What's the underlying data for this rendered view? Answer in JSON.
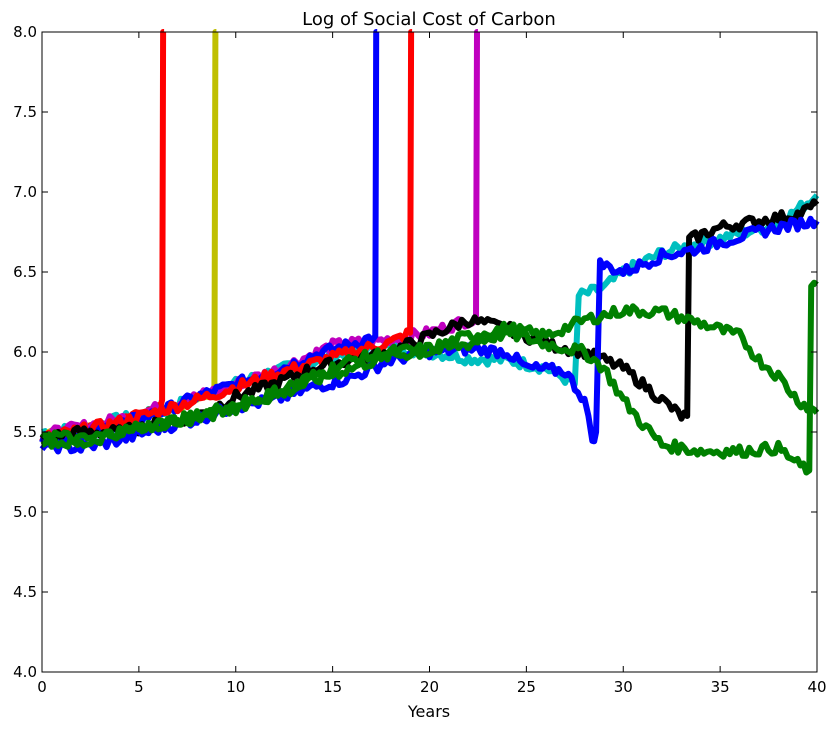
{
  "chart_data": {
    "type": "line",
    "title": "Log of Social Cost of Carbon",
    "xlabel": "Years",
    "ylabel": "",
    "xlim": [
      0,
      40
    ],
    "ylim": [
      4.0,
      8.0
    ],
    "xticks": [
      0,
      5,
      10,
      15,
      20,
      25,
      30,
      35,
      40
    ],
    "xtick_labels": [
      "0",
      "5",
      "10",
      "15",
      "20",
      "25",
      "30",
      "35",
      "40"
    ],
    "yticks": [
      4.0,
      4.5,
      5.0,
      5.5,
      6.0,
      6.5,
      7.0,
      7.5,
      8.0
    ],
    "ytick_labels": [
      "4.0",
      "4.5",
      "5.0",
      "5.5",
      "6.0",
      "6.5",
      "7.0",
      "7.5",
      "8.0"
    ],
    "grid": false,
    "series": [
      {
        "name": "cyan path",
        "color": "#00bfbf",
        "x": [
          0,
          2,
          4,
          6,
          8,
          10,
          12,
          14,
          16,
          18,
          20,
          22,
          24,
          26,
          27.5,
          27.7,
          29,
          30,
          32,
          34,
          36,
          38,
          40
        ],
        "y": [
          5.5,
          5.52,
          5.58,
          5.62,
          5.72,
          5.8,
          5.88,
          5.94,
          6.0,
          6.03,
          6.0,
          5.96,
          5.95,
          5.9,
          5.8,
          6.35,
          6.4,
          6.5,
          6.62,
          6.68,
          6.74,
          6.8,
          6.98
        ]
      },
      {
        "name": "yellow path",
        "color": "#bfbf00",
        "x": [
          0,
          2,
          4,
          6,
          8,
          8.9,
          8.95,
          9.0
        ],
        "y": [
          5.48,
          5.5,
          5.56,
          5.62,
          5.7,
          5.78,
          8.0,
          8.0
        ]
      },
      {
        "name": "red path 1",
        "color": "#ff0000",
        "x": [
          0,
          1,
          2,
          3,
          4,
          5,
          6,
          6.2,
          6.25,
          6.3
        ],
        "y": [
          5.45,
          5.48,
          5.5,
          5.52,
          5.58,
          5.62,
          5.66,
          5.7,
          8.0,
          8.0
        ]
      },
      {
        "name": "magenta path",
        "color": "#bf00bf",
        "x": [
          0,
          4,
          8,
          12,
          15,
          18,
          20,
          22,
          22.4,
          22.45,
          22.5
        ],
        "y": [
          5.48,
          5.58,
          5.72,
          5.88,
          6.04,
          6.08,
          6.12,
          6.2,
          6.2,
          8.0,
          8.0
        ]
      },
      {
        "name": "blue path 1",
        "color": "#0000ff",
        "x": [
          0,
          2,
          4,
          6,
          8,
          10,
          12,
          14,
          16,
          17.2,
          17.25,
          17.3
        ],
        "y": [
          5.45,
          5.48,
          5.55,
          5.62,
          5.72,
          5.8,
          5.88,
          5.98,
          6.05,
          6.1,
          8.0,
          8.0
        ]
      },
      {
        "name": "red path 2",
        "color": "#ff0000",
        "x": [
          0,
          4,
          8,
          12,
          16,
          18,
          19.0,
          19.05,
          19.1
        ],
        "y": [
          5.46,
          5.56,
          5.7,
          5.86,
          6.0,
          6.06,
          6.12,
          8.0,
          8.0
        ]
      },
      {
        "name": "black path",
        "color": "#000000",
        "x": [
          0,
          2,
          4,
          6,
          8,
          10,
          12,
          14,
          16,
          18,
          20,
          22,
          24,
          26,
          28,
          30,
          31,
          32,
          33,
          33.3,
          33.4,
          35,
          37,
          39,
          40
        ],
        "y": [
          5.46,
          5.5,
          5.5,
          5.55,
          5.6,
          5.72,
          5.8,
          5.9,
          5.95,
          6.0,
          6.1,
          6.2,
          6.15,
          6.05,
          6.0,
          5.9,
          5.8,
          5.7,
          5.6,
          5.6,
          6.7,
          6.78,
          6.82,
          6.86,
          6.92
        ]
      },
      {
        "name": "blue path 2",
        "color": "#0000ff",
        "x": [
          0,
          2,
          4,
          6,
          8,
          10,
          12,
          14,
          16,
          18,
          20,
          22,
          24,
          25,
          27,
          28,
          28.4,
          28.6,
          28.8,
          30,
          32,
          34,
          36,
          38,
          40
        ],
        "y": [
          5.42,
          5.4,
          5.45,
          5.52,
          5.58,
          5.66,
          5.7,
          5.78,
          5.84,
          5.95,
          6.0,
          6.02,
          6.0,
          5.9,
          5.88,
          5.7,
          5.45,
          5.5,
          6.55,
          6.5,
          6.6,
          6.65,
          6.72,
          6.78,
          6.82
        ]
      },
      {
        "name": "green path 1",
        "color": "#008000",
        "x": [
          0,
          2,
          4,
          6,
          8,
          10,
          12,
          14,
          16,
          18,
          20,
          22,
          24,
          26,
          28,
          29,
          30,
          31,
          32,
          34,
          36,
          38,
          39,
          39.6,
          39.7,
          40
        ],
        "y": [
          5.45,
          5.42,
          5.5,
          5.55,
          5.6,
          5.68,
          5.72,
          5.82,
          5.9,
          5.98,
          6.0,
          6.05,
          6.12,
          6.05,
          6.0,
          5.9,
          5.7,
          5.55,
          5.42,
          5.38,
          5.38,
          5.4,
          5.3,
          5.26,
          6.38,
          6.42
        ]
      },
      {
        "name": "green path 2",
        "color": "#008000",
        "x": [
          0,
          2,
          4,
          6,
          8,
          10,
          12,
          14,
          16,
          18,
          20,
          22,
          24,
          26,
          28,
          30,
          32,
          34,
          36,
          37,
          38,
          39,
          40
        ],
        "y": [
          5.5,
          5.45,
          5.5,
          5.55,
          5.58,
          5.65,
          5.75,
          5.85,
          5.95,
          6.0,
          6.02,
          6.1,
          6.15,
          6.1,
          6.2,
          6.26,
          6.25,
          6.18,
          6.1,
          5.95,
          5.85,
          5.7,
          5.62
        ]
      }
    ]
  }
}
